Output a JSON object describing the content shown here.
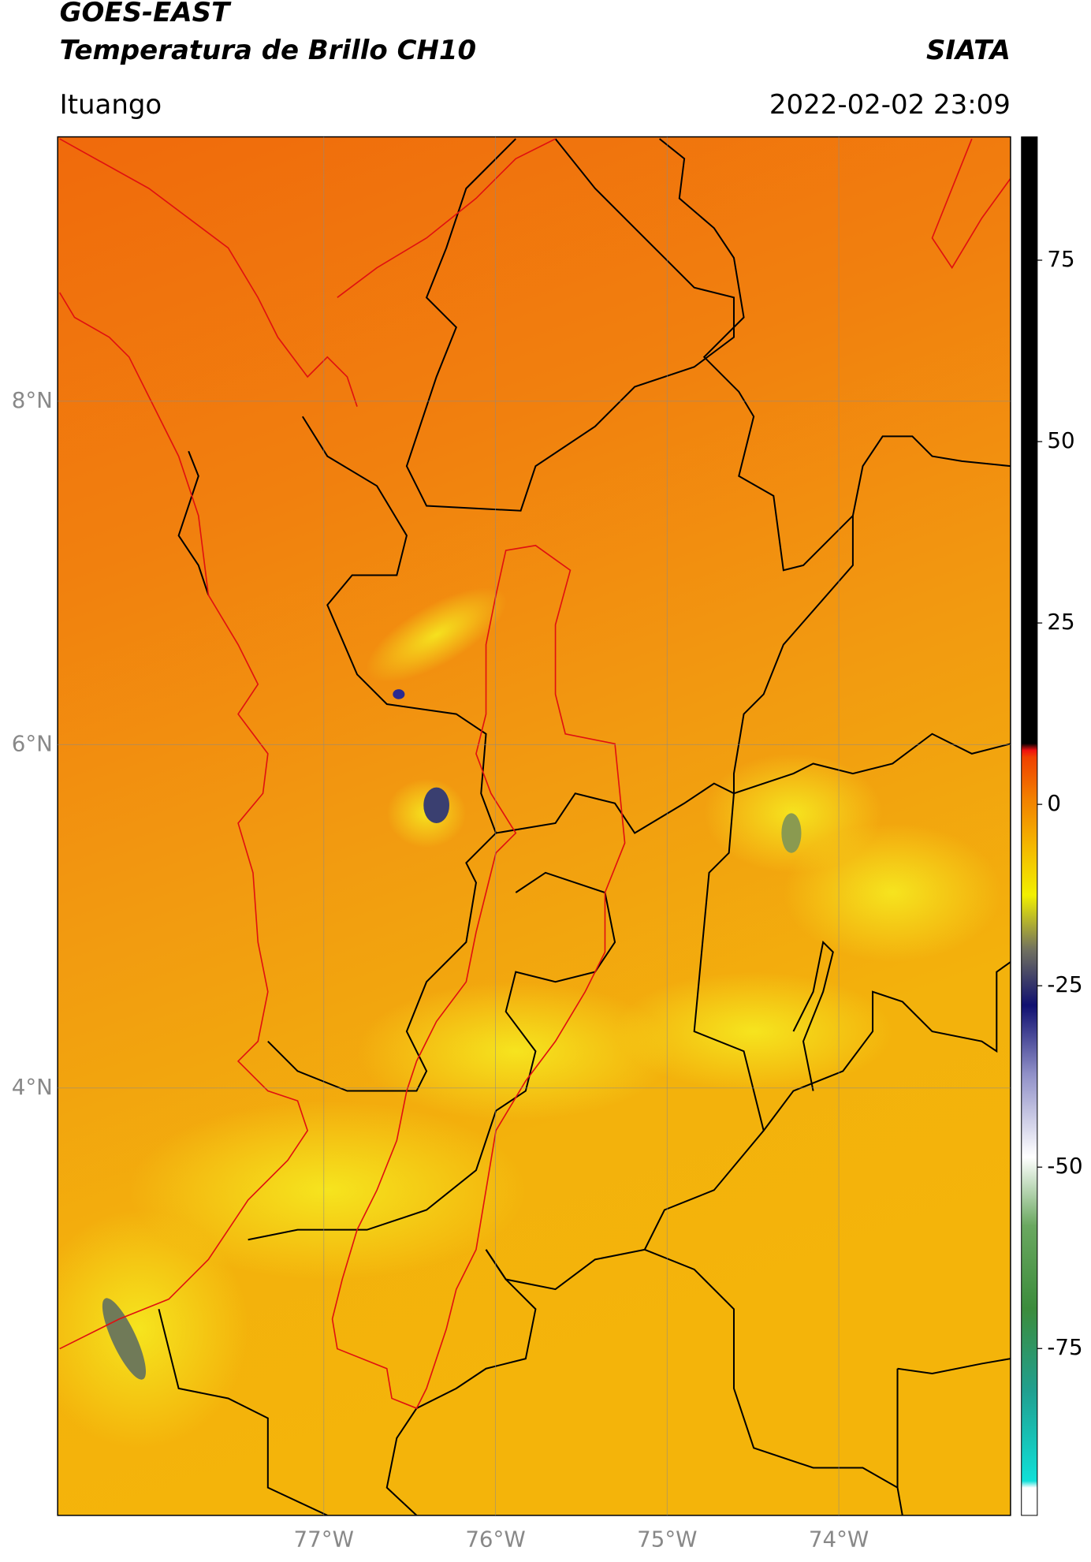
{
  "chart_data": {
    "type": "map",
    "title": "GOES-EAST",
    "subtitle": "Temperatura de Brillo CH10",
    "source": "SIATA",
    "location": "Ituango",
    "timestamp": "2022-02-02 23:09",
    "xlim": [
      -78.55,
      -73.0
    ],
    "ylim": [
      1.51,
      9.54
    ],
    "xticks": [
      {
        "value": -77,
        "label": "77°W"
      },
      {
        "value": -76,
        "label": "76°W"
      },
      {
        "value": -75,
        "label": "75°W"
      },
      {
        "value": -74,
        "label": "74°W"
      }
    ],
    "yticks": [
      {
        "value": 8,
        "label": "8°N"
      },
      {
        "value": 6,
        "label": "6°N"
      },
      {
        "value": 4,
        "label": "4°N"
      }
    ],
    "grid": true,
    "colorbar": {
      "lim": [
        -98,
        92
      ],
      "ticks": [
        75,
        50,
        25,
        0,
        -25,
        -50,
        -75
      ]
    }
  }
}
